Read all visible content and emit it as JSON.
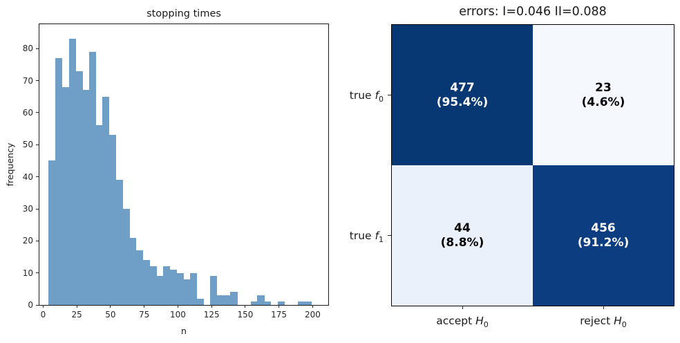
{
  "figure": {
    "background": "#ffffff"
  },
  "chart_data": [
    {
      "type": "bar",
      "kind": "histogram",
      "title": "stopping times",
      "xlabel": "n",
      "ylabel": "frequency",
      "bar_color": "#6f9ec7",
      "bin_start": 4,
      "bin_width": 5,
      "values": [
        45,
        77,
        68,
        83,
        73,
        67,
        79,
        56,
        65,
        53,
        39,
        30,
        21,
        17,
        14,
        12,
        9,
        12,
        11,
        10,
        8,
        10,
        2,
        0,
        9,
        3,
        3,
        4,
        0,
        0,
        1,
        3,
        1,
        0,
        1,
        0,
        0,
        1,
        1
      ],
      "xticks": [
        "0",
        "25",
        "50",
        "75",
        "100",
        "125",
        "150",
        "175",
        "200"
      ],
      "xtick_values": [
        0,
        25,
        50,
        75,
        100,
        125,
        150,
        175,
        200
      ],
      "yticks": [
        "0",
        "10",
        "20",
        "30",
        "40",
        "50",
        "60",
        "70",
        "80"
      ],
      "ytick_values": [
        0,
        10,
        20,
        30,
        40,
        50,
        60,
        70,
        80
      ],
      "xlim": [
        -2.8,
        211.6
      ],
      "ylim": [
        0,
        87.6
      ],
      "grid": false,
      "legend": null
    },
    {
      "type": "heatmap",
      "kind": "confusion-matrix",
      "title": "errors: I=0.046 II=0.088",
      "rows": [
        {
          "text": "true ",
          "italic": "f",
          "sub": "0"
        },
        {
          "text": "true ",
          "italic": "f",
          "sub": "1"
        }
      ],
      "cols": [
        {
          "text": "accept ",
          "italic": "H",
          "sub": "0"
        },
        {
          "text": "reject ",
          "italic": "H",
          "sub": "0"
        }
      ],
      "values": [
        [
          477,
          23
        ],
        [
          44,
          456
        ]
      ],
      "percent_labels": [
        [
          "(95.4%)",
          "(4.6%)"
        ],
        [
          "(8.8%)",
          "(91.2%)"
        ]
      ],
      "cell_colors": [
        [
          "#083873",
          "#f5f9fe"
        ],
        [
          "#eaf1fb",
          "#0b3d80"
        ]
      ],
      "text_colors": [
        [
          "#ffffff",
          "#000000"
        ],
        [
          "#000000",
          "#ffffff"
        ]
      ]
    }
  ]
}
